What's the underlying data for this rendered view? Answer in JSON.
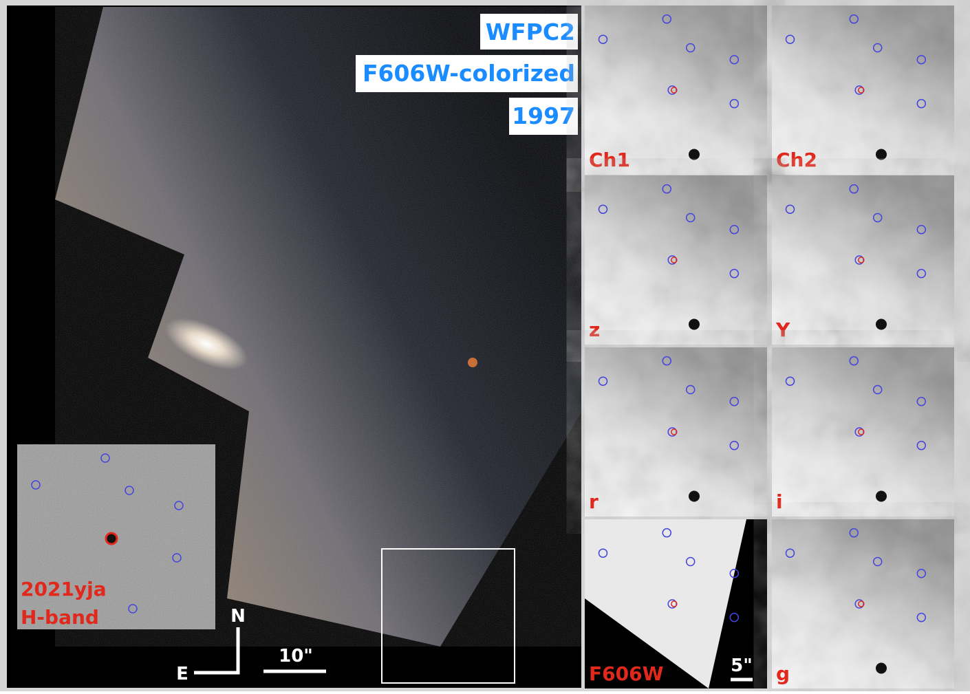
{
  "header": {
    "instrument": "WFPC2",
    "filter": "F606W-colorized",
    "year": "1997"
  },
  "inset": {
    "name": "2021yja",
    "band": "H-band"
  },
  "compass": {
    "north": "N",
    "east": "E"
  },
  "scale_bars": {
    "main": "10\"",
    "panels": "5\""
  },
  "panels": [
    {
      "label": "Ch1"
    },
    {
      "label": "Ch2"
    },
    {
      "label": "z"
    },
    {
      "label": "Y"
    },
    {
      "label": "r"
    },
    {
      "label": "i"
    },
    {
      "label": "F606W"
    },
    {
      "label": "g"
    }
  ]
}
